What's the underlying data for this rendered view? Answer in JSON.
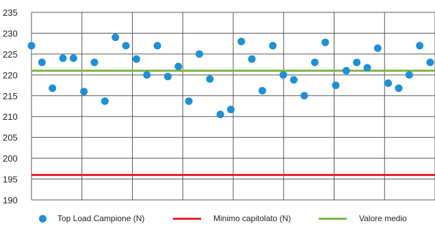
{
  "chart_data": {
    "type": "scatter",
    "title": "",
    "xlabel": "",
    "ylabel": "",
    "ylim": [
      190,
      235
    ],
    "yticks": [
      "235",
      "230",
      "225",
      "220",
      "215",
      "210",
      "205",
      "200",
      "195",
      "190"
    ],
    "grid": true,
    "legend_position": "bottom",
    "series": [
      {
        "name": "Top Load Campione (N)",
        "kind": "points",
        "color": "#1f8fd6",
        "values": [
          227,
          223,
          216.8,
          224,
          224,
          216,
          223,
          213.7,
          229,
          227,
          223.8,
          220,
          227,
          219.6,
          222,
          213.7,
          225,
          219,
          210.5,
          211.7,
          228,
          223.8,
          216.2,
          227,
          220,
          218.8,
          215,
          223,
          227.8,
          217.5,
          221,
          223,
          221.7,
          226.4,
          218,
          216.8,
          220,
          227,
          223
        ]
      },
      {
        "name": "Minimo capitolato (N)",
        "kind": "line",
        "color": "#e8202a",
        "value": 196
      },
      {
        "name": "Valore medio",
        "kind": "line",
        "color": "#7db442",
        "value": 221
      }
    ]
  }
}
